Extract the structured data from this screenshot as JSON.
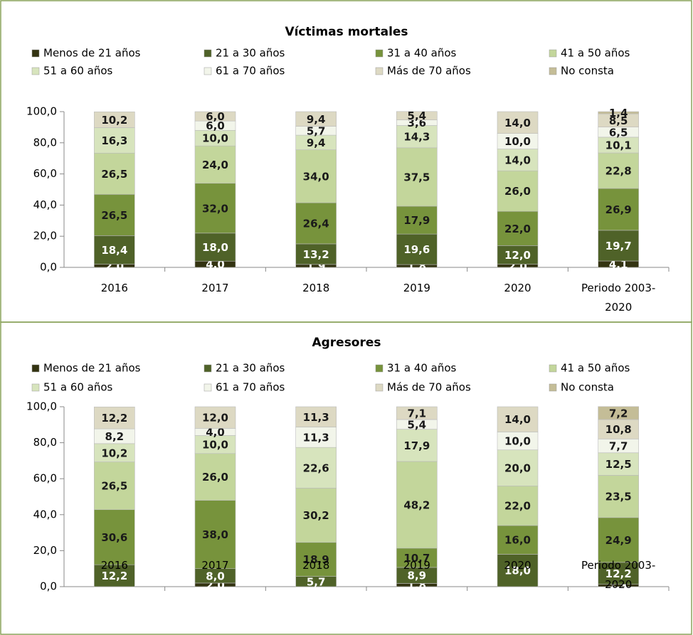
{
  "chart_data": [
    {
      "type": "bar",
      "title": "Víctimas mortales",
      "categories": [
        "2016",
        "2017",
        "2018",
        "2019",
        "2020",
        "Periodo 2003-2020"
      ],
      "ylim": [
        0,
        100
      ],
      "yticks": [
        {
          "value": 0,
          "label": "0,0"
        },
        {
          "value": 20,
          "label": "20,0"
        },
        {
          "value": 40,
          "label": "40,0"
        },
        {
          "value": 60,
          "label": "60,0"
        },
        {
          "value": 80,
          "label": "80,0"
        },
        {
          "value": 100,
          "label": "100,0"
        }
      ],
      "series": [
        {
          "name": "Menos de 21 años",
          "color": "#333311",
          "values": [
            2.0,
            4.0,
            1.9,
            1.8,
            2.0,
            4.1
          ],
          "value_labels": [
            "2,0",
            "4,0",
            "1,9",
            "1,8",
            "2,0",
            "4,1"
          ]
        },
        {
          "name": "21 a 30 años",
          "color": "#4f6228",
          "values": [
            18.4,
            18.0,
            13.2,
            19.6,
            12.0,
            19.7
          ],
          "value_labels": [
            "18,4",
            "18,0",
            "13,2",
            "19,6",
            "12,0",
            "19,7"
          ]
        },
        {
          "name": "31 a 40 años",
          "color": "#77933c",
          "values": [
            26.5,
            32.0,
            26.4,
            17.9,
            22.0,
            26.9
          ],
          "value_labels": [
            "26,5",
            "32,0",
            "26,4",
            "17,9",
            "22,0",
            "26,9"
          ]
        },
        {
          "name": "41 a 50 años",
          "color": "#c3d69b",
          "values": [
            26.5,
            24.0,
            34.0,
            37.5,
            26.0,
            22.8
          ],
          "value_labels": [
            "26,5",
            "24,0",
            "34,0",
            "37,5",
            "26,0",
            "22,8"
          ]
        },
        {
          "name": "51 a 60 años",
          "color": "#d7e4bd",
          "values": [
            16.3,
            10.0,
            9.4,
            14.3,
            14.0,
            10.1
          ],
          "value_labels": [
            "16,3",
            "10,0",
            "9,4",
            "14,3",
            "14,0",
            "10,1"
          ]
        },
        {
          "name": "61 a 70 años",
          "color": "#f2f5ea",
          "values": [
            0,
            6.0,
            5.7,
            3.6,
            10.0,
            6.5
          ],
          "value_labels": [
            null,
            "6,0",
            "5,7",
            "3,6",
            "10,0",
            "6,5"
          ]
        },
        {
          "name": "Más de 70 años",
          "color": "#ddd9c3",
          "values": [
            10.2,
            6.0,
            9.4,
            5.4,
            14.0,
            8.5
          ],
          "value_labels": [
            "10,2",
            "6,0",
            "9,4",
            "5,4",
            "14,0",
            "8,5"
          ]
        },
        {
          "name": "No consta",
          "color": "#c4bd97",
          "values": [
            0,
            0,
            0,
            0,
            0,
            1.4
          ],
          "value_labels": [
            null,
            null,
            null,
            null,
            null,
            "1,4"
          ]
        }
      ]
    },
    {
      "type": "bar",
      "title": "Agresores",
      "categories": [
        "2016",
        "2017",
        "2018",
        "2019",
        "2020",
        "Periodo 2003-2020"
      ],
      "ylim": [
        0,
        100
      ],
      "yticks": [
        {
          "value": 0,
          "label": "0,0"
        },
        {
          "value": 20,
          "label": "20,0"
        },
        {
          "value": 40,
          "label": "40,0"
        },
        {
          "value": 60,
          "label": "60,0"
        },
        {
          "value": 80,
          "label": "80,0"
        },
        {
          "value": 100,
          "label": "100,0"
        }
      ],
      "series": [
        {
          "name": "Menos de 21 años",
          "color": "#333311",
          "values": [
            0,
            2.0,
            0,
            1.8,
            0,
            1.3
          ],
          "value_labels": [
            null,
            "2,0",
            null,
            "1,8",
            null,
            "1,3"
          ]
        },
        {
          "name": "21 a 30 años",
          "color": "#4f6228",
          "values": [
            12.2,
            8.0,
            5.7,
            8.9,
            18.0,
            12.2
          ],
          "value_labels": [
            "12,2",
            "8,0",
            "5,7",
            "8,9",
            "18,0",
            "12,2"
          ]
        },
        {
          "name": "31 a 40 años",
          "color": "#77933c",
          "values": [
            30.6,
            38.0,
            18.9,
            10.7,
            16.0,
            24.9
          ],
          "value_labels": [
            "30,6",
            "38,0",
            "18,9",
            "10,7",
            "16,0",
            "24,9"
          ]
        },
        {
          "name": "41 a 50 años",
          "color": "#c3d69b",
          "values": [
            26.5,
            26.0,
            30.2,
            48.2,
            22.0,
            23.5
          ],
          "value_labels": [
            "26,5",
            "26,0",
            "30,2",
            "48,2",
            "22,0",
            "23,5"
          ]
        },
        {
          "name": "51 a 60 años",
          "color": "#d7e4bd",
          "values": [
            10.2,
            10.0,
            22.6,
            17.9,
            20.0,
            12.5
          ],
          "value_labels": [
            "10,2",
            "10,0",
            "22,6",
            "17,9",
            "20,0",
            "12,5"
          ]
        },
        {
          "name": "61 a 70 años",
          "color": "#f2f5ea",
          "values": [
            8.2,
            4.0,
            11.3,
            5.4,
            10.0,
            7.7
          ],
          "value_labels": [
            "8,2",
            "4,0",
            "11,3",
            "5,4",
            "10,0",
            "7,7"
          ]
        },
        {
          "name": "Más de 70 años",
          "color": "#ddd9c3",
          "values": [
            12.2,
            12.0,
            11.3,
            7.1,
            14.0,
            10.8
          ],
          "value_labels": [
            "12,2",
            "12,0",
            "11,3",
            "7,1",
            "14,0",
            "10,8"
          ]
        },
        {
          "name": "No consta",
          "color": "#c4bd97",
          "values": [
            0,
            0,
            0,
            0,
            0,
            7.2
          ],
          "value_labels": [
            null,
            null,
            null,
            null,
            null,
            "7,2"
          ]
        }
      ]
    }
  ]
}
